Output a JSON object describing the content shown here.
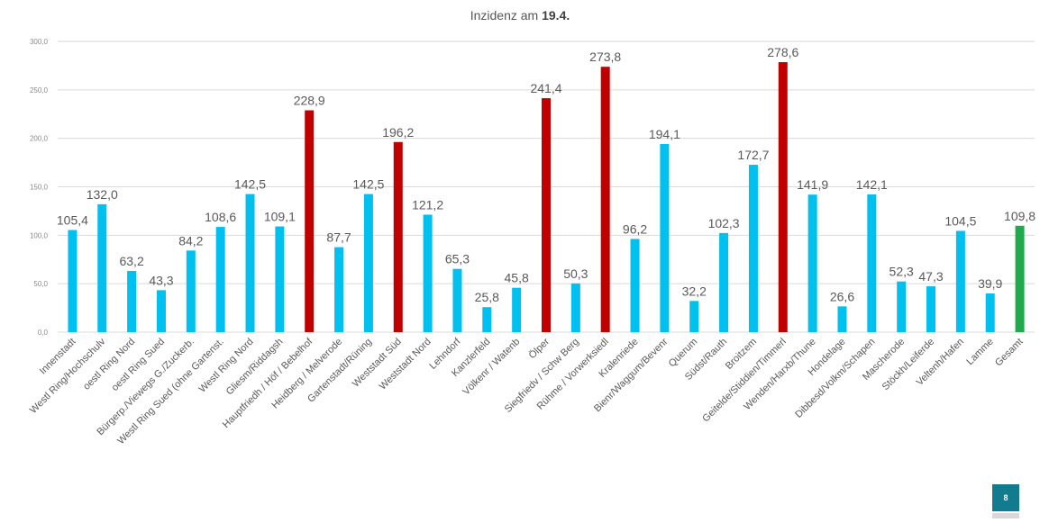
{
  "title": {
    "prefix": "Inzidenz am",
    "date": "19.4."
  },
  "page_number": "8",
  "colors": {
    "default": "#00c0f0",
    "high": "#c00000",
    "total": "#1faa4e",
    "grid": "#d9d9d9"
  },
  "chart_data": {
    "type": "bar",
    "title": "Inzidenz am 19.4.",
    "ylim": [
      0,
      300
    ],
    "yticks": [
      "0,0",
      "50,0",
      "100,0",
      "150,0",
      "200,0",
      "250,0",
      "300,0"
    ],
    "grid": true,
    "categories": [
      "Innenstadt",
      "Westl Ring/Hochschulv",
      "oestl Ring Nord",
      "oestl Ring Sued",
      "Bürgerp./Viewegs G./Zuckerb.",
      "Westl Ring Sued (ohne Gartenst.",
      "Westl Ring Nord",
      "Gliesm/Riddagsh",
      "Hauptfriedh / Höf / Bebelhof",
      "Heidberg / Melverode",
      "Gartenstadt/Rüning",
      "Weststadt Süd",
      "Weststadt Nord",
      "Lehndorf",
      "Kanzlerfeld",
      "Völkenr / Watenb",
      "Ölper",
      "Siegfriedv / Schw Berg",
      "Rühme / Vorwerksiedl",
      "Kralenriede",
      "Bienr/Waggum/Bevenr",
      "Querum",
      "Südst/Rauth",
      "Broitzem",
      "Geitelde/Stiddien/Timmerl",
      "Wenden/Harxb/Thune",
      "Hondelage",
      "Dibbesd/Volkm/Schapen",
      "Mascherode",
      "Stöckh/Leiferde",
      "Veltenh/Hafen",
      "Lamme",
      "Gesamt"
    ],
    "values": [
      105.4,
      132.0,
      63.2,
      43.3,
      84.2,
      108.6,
      142.5,
      109.1,
      228.9,
      87.7,
      142.5,
      196.2,
      121.2,
      65.3,
      25.8,
      45.8,
      241.4,
      50.3,
      273.8,
      96.2,
      194.1,
      32.2,
      102.3,
      172.7,
      278.6,
      141.9,
      26.6,
      142.1,
      52.3,
      47.3,
      104.5,
      39.9,
      109.8
    ],
    "labels": [
      "105,4",
      "132,0",
      "63,2",
      "43,3",
      "84,2",
      "108,6",
      "142,5",
      "109,1",
      "228,9",
      "87,7",
      "142,5",
      "196,2",
      "121,2",
      "65,3",
      "25,8",
      "45,8",
      "241,4",
      "50,3",
      "273,8",
      "96,2",
      "194,1",
      "32,2",
      "102,3",
      "172,7",
      "278,6",
      "141,9",
      "26,6",
      "142,1",
      "52,3",
      "47,3",
      "104,5",
      "39,9",
      "109,8"
    ],
    "highlight": [
      "default",
      "default",
      "default",
      "default",
      "default",
      "default",
      "default",
      "default",
      "high",
      "default",
      "default",
      "high",
      "default",
      "default",
      "default",
      "default",
      "high",
      "default",
      "high",
      "default",
      "default",
      "default",
      "default",
      "default",
      "high",
      "default",
      "default",
      "default",
      "default",
      "default",
      "default",
      "default",
      "total"
    ]
  }
}
